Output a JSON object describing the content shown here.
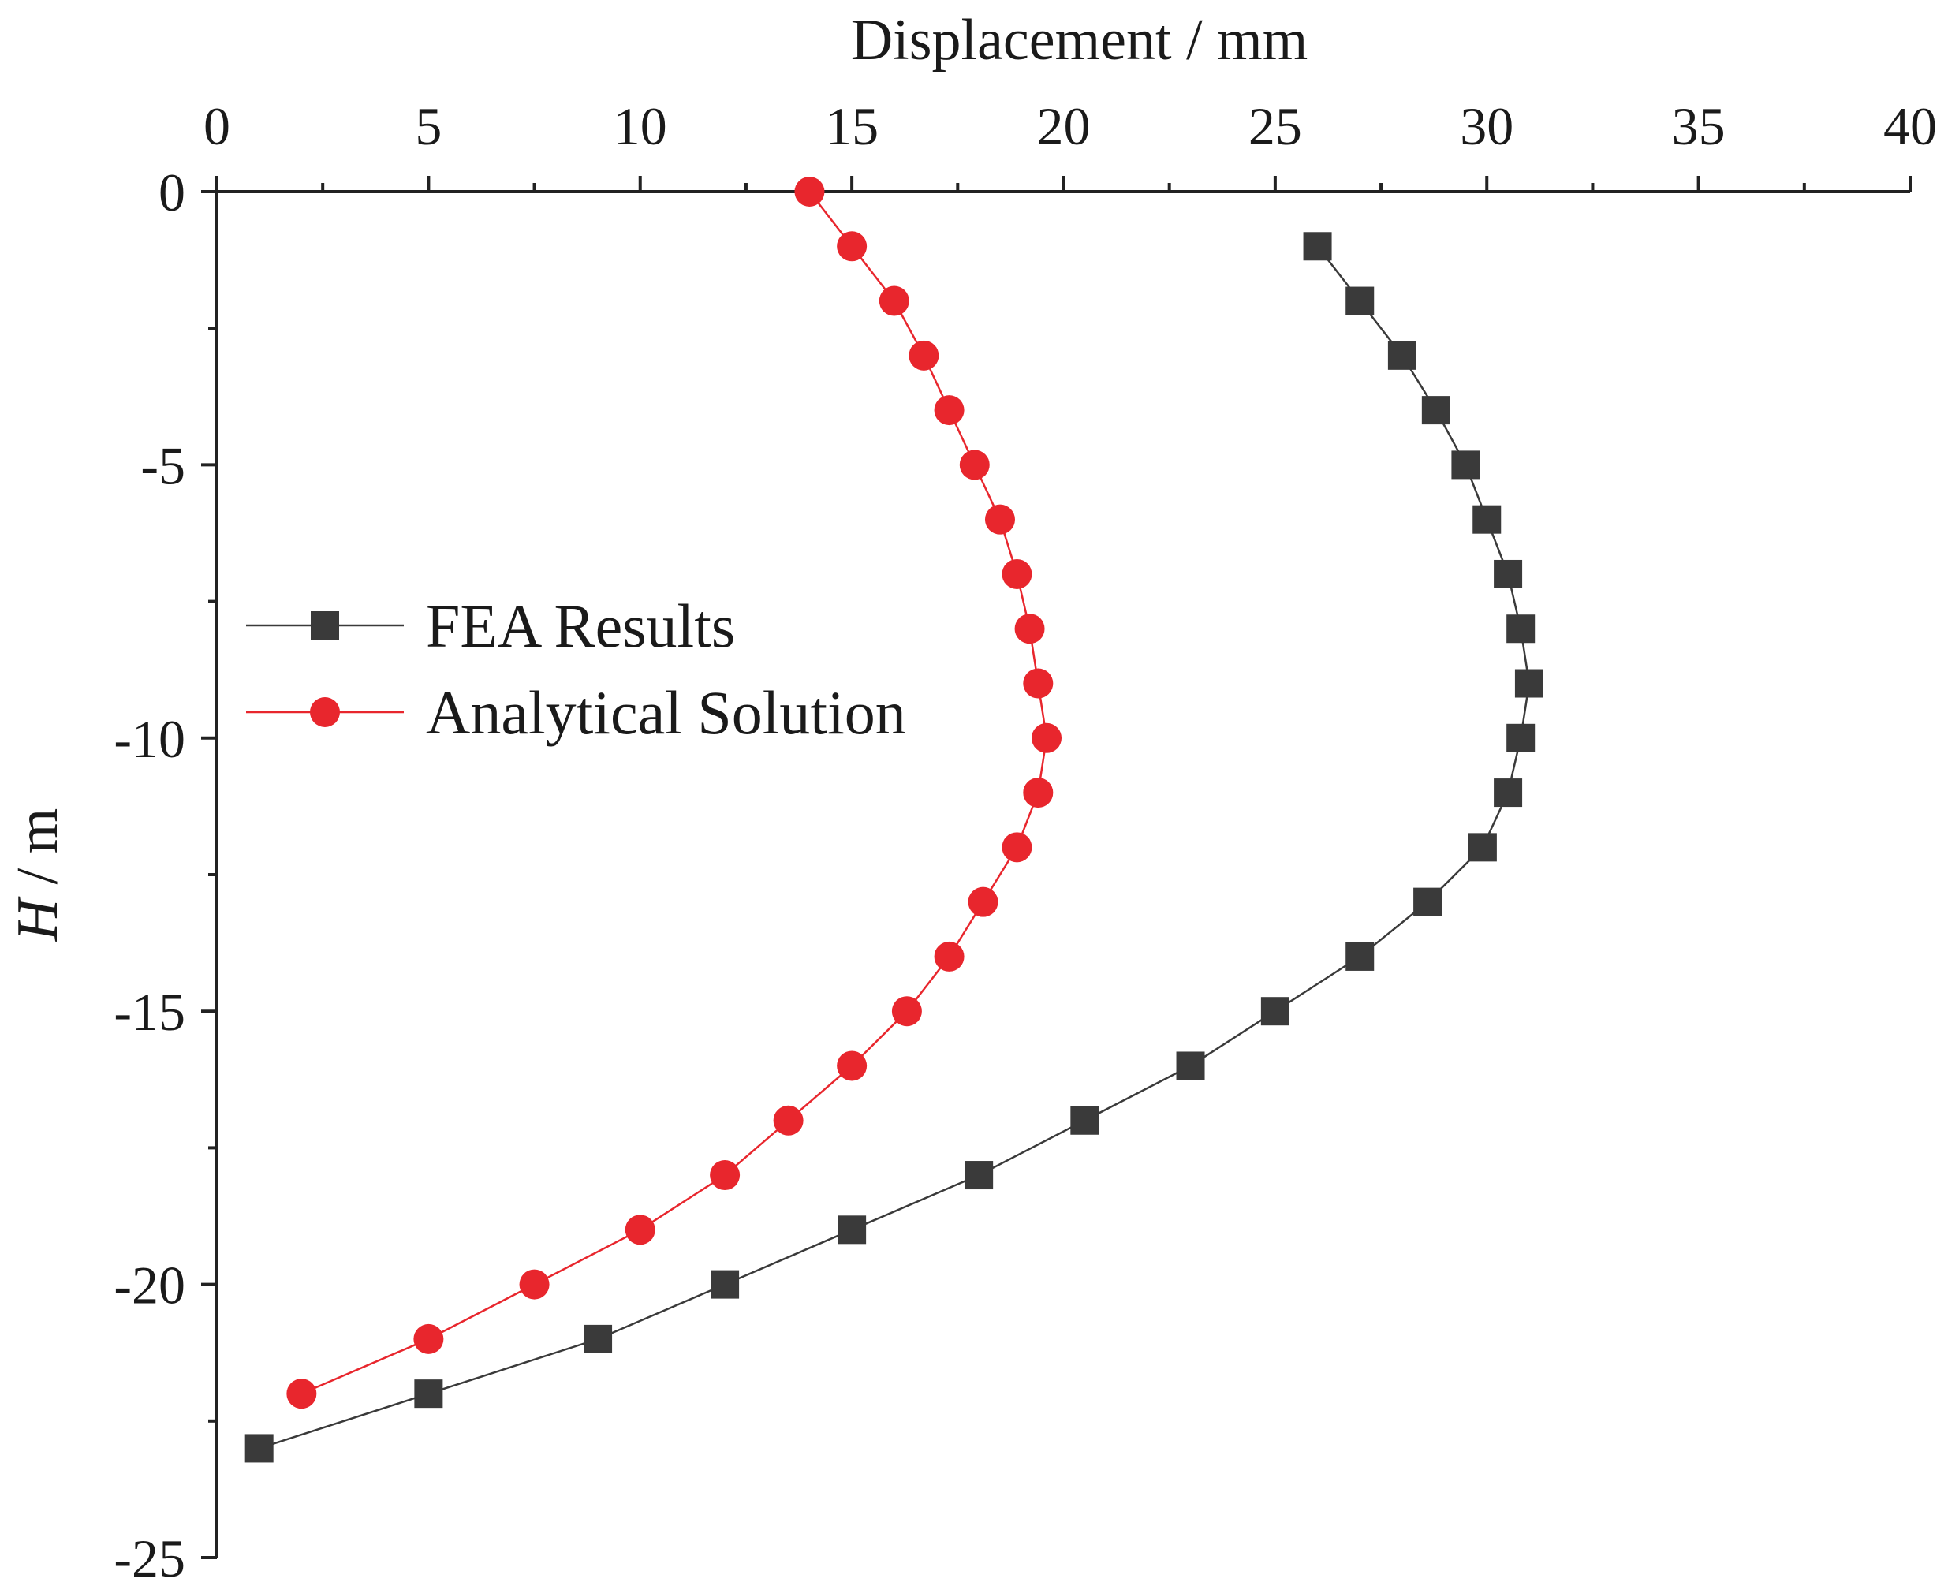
{
  "chart_data": {
    "type": "line",
    "xlabel": "Displacement / mm",
    "ylabel_italic": "H",
    "ylabel_rest": " / m",
    "xlim": [
      0,
      40
    ],
    "ylim": [
      -25,
      0
    ],
    "x_axis_position": "top",
    "xticks": [
      0,
      5,
      10,
      15,
      20,
      25,
      30,
      35,
      40
    ],
    "yticks": [
      0,
      -5,
      -10,
      -15,
      -20,
      -25
    ],
    "grid": false,
    "legend_position": "center-left",
    "series": [
      {
        "name": "FEA Results",
        "color": "#3a3a3a",
        "marker": "square",
        "points": [
          [
            26.0,
            -1
          ],
          [
            27.0,
            -2
          ],
          [
            28.0,
            -3
          ],
          [
            28.8,
            -4
          ],
          [
            29.5,
            -5
          ],
          [
            30.0,
            -6
          ],
          [
            30.5,
            -7
          ],
          [
            30.8,
            -8
          ],
          [
            31.0,
            -9
          ],
          [
            30.8,
            -10
          ],
          [
            30.5,
            -11
          ],
          [
            29.9,
            -12
          ],
          [
            28.6,
            -13
          ],
          [
            27.0,
            -14
          ],
          [
            25.0,
            -15
          ],
          [
            23.0,
            -16
          ],
          [
            20.5,
            -17
          ],
          [
            18.0,
            -18
          ],
          [
            15.0,
            -19
          ],
          [
            12.0,
            -20
          ],
          [
            9.0,
            -21
          ],
          [
            5.0,
            -22
          ],
          [
            1.0,
            -23
          ]
        ]
      },
      {
        "name": "Analytical Solution",
        "color": "#e8262d",
        "marker": "circle",
        "points": [
          [
            14.0,
            0
          ],
          [
            15.0,
            -1
          ],
          [
            16.0,
            -2
          ],
          [
            16.7,
            -3
          ],
          [
            17.3,
            -4
          ],
          [
            17.9,
            -5
          ],
          [
            18.5,
            -6
          ],
          [
            18.9,
            -7
          ],
          [
            19.2,
            -8
          ],
          [
            19.4,
            -9
          ],
          [
            19.6,
            -10
          ],
          [
            19.4,
            -11
          ],
          [
            18.9,
            -12
          ],
          [
            18.1,
            -13
          ],
          [
            17.3,
            -14
          ],
          [
            16.3,
            -15
          ],
          [
            15.0,
            -16
          ],
          [
            13.5,
            -17
          ],
          [
            12.0,
            -18
          ],
          [
            10.0,
            -19
          ],
          [
            7.5,
            -20
          ],
          [
            5.0,
            -21
          ],
          [
            2.0,
            -22
          ]
        ]
      }
    ]
  }
}
